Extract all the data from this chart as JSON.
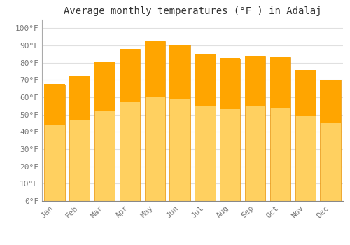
{
  "title": "Average monthly temperatures (°F ) in Adalaj",
  "categories": [
    "Jan",
    "Feb",
    "Mar",
    "Apr",
    "May",
    "Jun",
    "Jul",
    "Aug",
    "Sep",
    "Oct",
    "Nov",
    "Dec"
  ],
  "values": [
    67.5,
    72.0,
    80.5,
    88.0,
    92.5,
    90.5,
    85.0,
    82.5,
    84.0,
    83.0,
    76.0,
    70.0
  ],
  "bar_color_top": "#FFA500",
  "bar_color_bottom": "#FFD060",
  "bar_edge_color": "#E89000",
  "background_color": "#FFFFFF",
  "grid_color": "#E0E0E0",
  "ylabel_ticks": [
    0,
    10,
    20,
    30,
    40,
    50,
    60,
    70,
    80,
    90,
    100
  ],
  "ylim": [
    0,
    105
  ],
  "title_fontsize": 10,
  "tick_fontsize": 8,
  "font_family": "monospace"
}
